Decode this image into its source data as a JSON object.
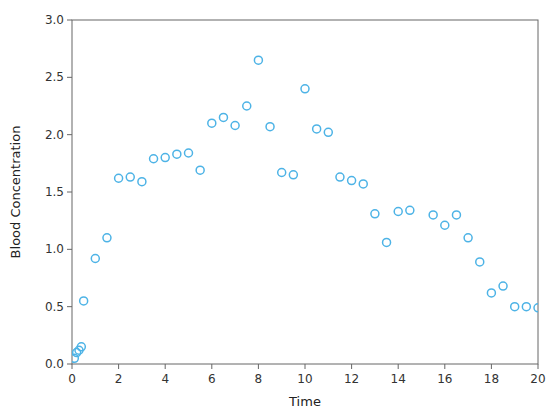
{
  "chart_data": {
    "type": "scatter",
    "xlabel": "Time",
    "ylabel": "Blood Concentration",
    "x": [
      0.1,
      0.2,
      0.3,
      0.4,
      0.5,
      1.0,
      1.5,
      2.0,
      2.5,
      3.0,
      3.5,
      4.0,
      4.5,
      5.0,
      5.5,
      6.0,
      6.5,
      7.0,
      7.5,
      8.0,
      8.5,
      9.0,
      9.5,
      10.0,
      10.5,
      11.0,
      11.5,
      12.0,
      12.5,
      13.0,
      13.5,
      14.0,
      14.5,
      15.5,
      16.0,
      16.5,
      17.0,
      17.5,
      18.0,
      18.5,
      19.0,
      19.5,
      20.0
    ],
    "values": [
      0.05,
      0.1,
      0.12,
      0.15,
      0.55,
      0.92,
      1.1,
      1.62,
      1.63,
      1.59,
      1.79,
      1.8,
      1.83,
      1.84,
      1.69,
      2.1,
      2.15,
      2.08,
      2.25,
      2.65,
      2.07,
      1.67,
      1.65,
      2.4,
      2.05,
      2.02,
      1.63,
      1.6,
      1.57,
      1.31,
      1.06,
      1.33,
      1.34,
      1.3,
      1.21,
      1.3,
      1.1,
      0.89,
      0.62,
      0.68,
      0.5,
      0.5,
      0.49
    ],
    "color": "#4db3e6",
    "marker": "circle",
    "xlim": [
      0,
      20
    ],
    "ylim": [
      0,
      3
    ],
    "xticks": [
      0,
      2,
      4,
      6,
      8,
      10,
      12,
      14,
      16,
      18,
      20
    ],
    "yticks": [
      {
        "value": 0,
        "label": "0.0"
      },
      0.5,
      {
        "value": 1.0,
        "label": "1.0"
      },
      1.5,
      {
        "value": 2.0,
        "label": "2.0"
      },
      2.5,
      {
        "value": 3.0,
        "label": "3.0"
      }
    ]
  }
}
